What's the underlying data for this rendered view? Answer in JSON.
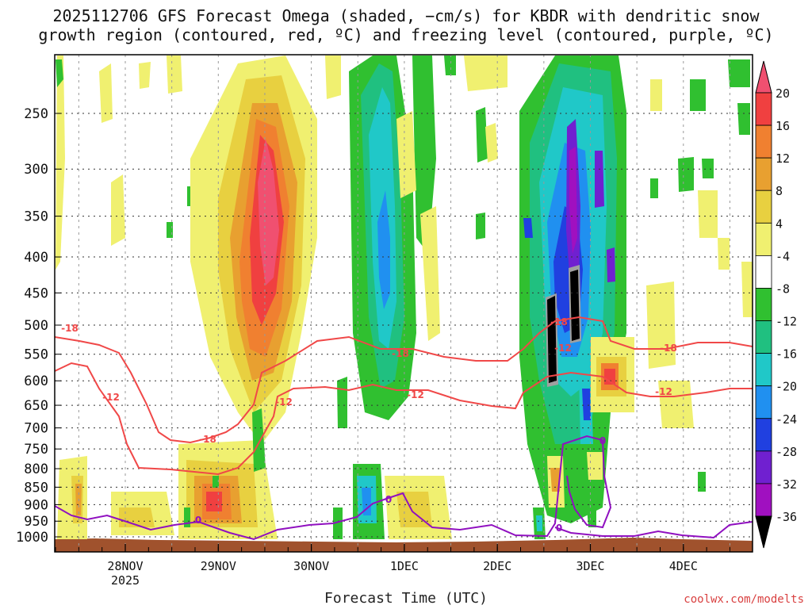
{
  "chart_data": {
    "type": "heatmap",
    "title_line1": "2025112706 GFS Forecast Omega (shaded, −cm/s) for KBDR with dendritic snow",
    "title_line2": "growth region (contoured, red, ºC) and freezing level (contoured, purple, ºC)",
    "xlabel": "Forecast Time (UTC)",
    "credit": "coolwx.com/modelts",
    "y_axis": {
      "ticks": [
        250,
        300,
        350,
        400,
        450,
        500,
        550,
        600,
        650,
        700,
        750,
        800,
        850,
        900,
        950,
        1000
      ]
    },
    "x_axis": {
      "tick_labels": [
        "28NOV",
        "29NOV",
        "30NOV",
        "1DEC",
        "2DEC",
        "3DEC",
        "4DEC"
      ],
      "year_label": "2025"
    },
    "colorbar": {
      "labels": [
        "20",
        "16",
        "12",
        "8",
        "4",
        "-4",
        "-8",
        "-12",
        "-16",
        "-20",
        "-24",
        "-28",
        "-32",
        "-36"
      ],
      "colors": [
        "#f05070",
        "#f04040",
        "#f08030",
        "#e8a030",
        "#e8d040",
        "#f0f070",
        "#ffffff",
        "#30c030",
        "#20c080",
        "#20c8c8",
        "#2090f0",
        "#2040e0",
        "#7020d0",
        "#a010c0",
        "#a0a0a0"
      ]
    },
    "contours": [
      {
        "color": "#f04848",
        "level_labels": [
          "-18",
          "-18",
          "-18",
          "-18",
          "-18"
        ]
      },
      {
        "color": "#f04848",
        "level_labels": [
          "-12",
          "-12",
          "-12",
          "-12",
          "-12"
        ]
      },
      {
        "color": "#9010c0",
        "level_labels": [
          "0",
          "0",
          "0",
          "0"
        ]
      }
    ],
    "grid": true
  }
}
